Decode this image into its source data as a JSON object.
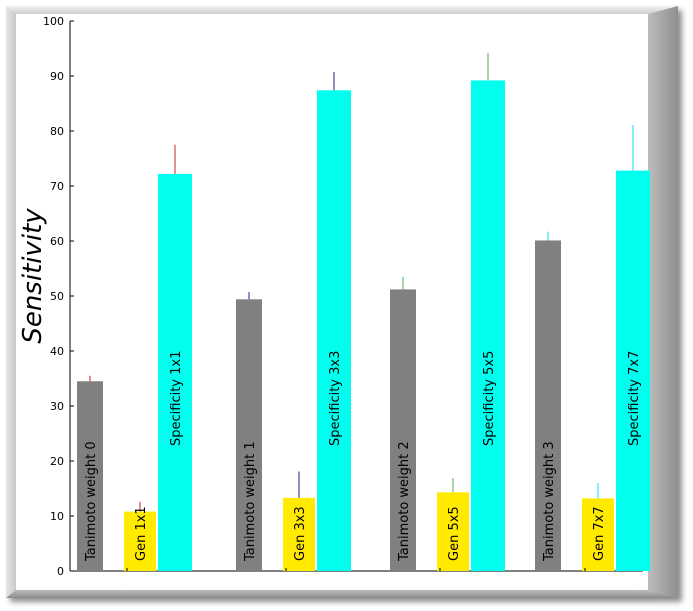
{
  "chart_data": {
    "type": "bar",
    "ylabel": "Sensitivity",
    "xlabel": "",
    "title": "",
    "ylim": [
      0,
      100
    ],
    "yticks": [
      0,
      10,
      20,
      30,
      40,
      50,
      60,
      70,
      80,
      90,
      100
    ],
    "grid": false,
    "groups": [
      {
        "bars": [
          {
            "label": "Tanimoto weight 0",
            "value": 34.5,
            "err": 1.0,
            "color": "#808080",
            "err_color": "#c62828"
          },
          {
            "label": "Gen 1x1",
            "value": 10.8,
            "err": 1.8,
            "color": "#ffea00",
            "err_color": "#c62828"
          },
          {
            "label": "Specificity 1x1",
            "value": 72.2,
            "err": 5.3,
            "color": "#00ffee",
            "err_color": "#c62828"
          }
        ]
      },
      {
        "bars": [
          {
            "label": "Tanimoto weight 1",
            "value": 49.4,
            "err": 1.3,
            "color": "#808080",
            "err_color": "#1a237e"
          },
          {
            "label": "Gen 3x3",
            "value": 13.3,
            "err": 4.8,
            "color": "#ffea00",
            "err_color": "#1a237e"
          },
          {
            "label": "Specificity 3x3",
            "value": 87.4,
            "err": 3.3,
            "color": "#00ffee",
            "err_color": "#1a237e"
          }
        ]
      },
      {
        "bars": [
          {
            "label": "Tanimoto weight 2",
            "value": 51.2,
            "err": 2.3,
            "color": "#808080",
            "err_color": "#4caf50"
          },
          {
            "label": "Gen 5x5",
            "value": 14.3,
            "err": 2.6,
            "color": "#ffea00",
            "err_color": "#4caf50"
          },
          {
            "label": "Specificity 5x5",
            "value": 89.2,
            "err": 5.0,
            "color": "#00ffee",
            "err_color": "#4caf50"
          }
        ]
      },
      {
        "bars": [
          {
            "label": "Tanimoto weight 3",
            "value": 60.1,
            "err": 1.6,
            "color": "#808080",
            "err_color": "#00e5ff"
          },
          {
            "label": "Gen 7x7",
            "value": 13.2,
            "err": 2.8,
            "color": "#ffea00",
            "err_color": "#00e5ff"
          },
          {
            "label": "Specificity 7x7",
            "value": 72.8,
            "err": 8.3,
            "color": "#00ffee",
            "err_color": "#00e5ff"
          }
        ]
      }
    ]
  }
}
